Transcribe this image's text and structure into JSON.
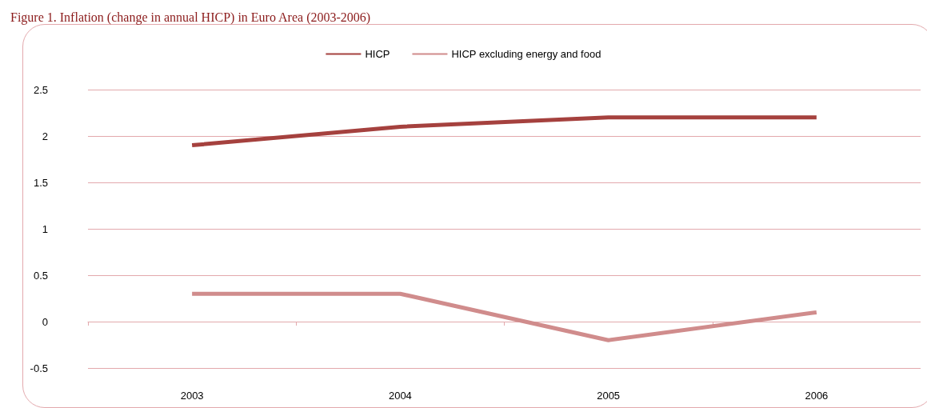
{
  "chart_data": {
    "type": "line",
    "title": "Figure 1. Inflation (change in annual HICP) in Euro Area (2003-2006)",
    "categories": [
      "2003",
      "2004",
      "2005",
      "2006"
    ],
    "series": [
      {
        "name": "HICP",
        "color": "#a5413e",
        "values": [
          1.9,
          2.1,
          2.2,
          2.2
        ]
      },
      {
        "name": "HICP excluding energy and food",
        "color": "#d08c8c",
        "values": [
          0.3,
          0.3,
          -0.2,
          0.1
        ]
      }
    ],
    "ylim": [
      -0.5,
      2.5
    ],
    "yticks": [
      -0.5,
      0,
      0.5,
      1,
      1.5,
      2,
      2.5
    ],
    "grid": "y",
    "legend": "top",
    "marker": "none",
    "line_style": "solid"
  }
}
